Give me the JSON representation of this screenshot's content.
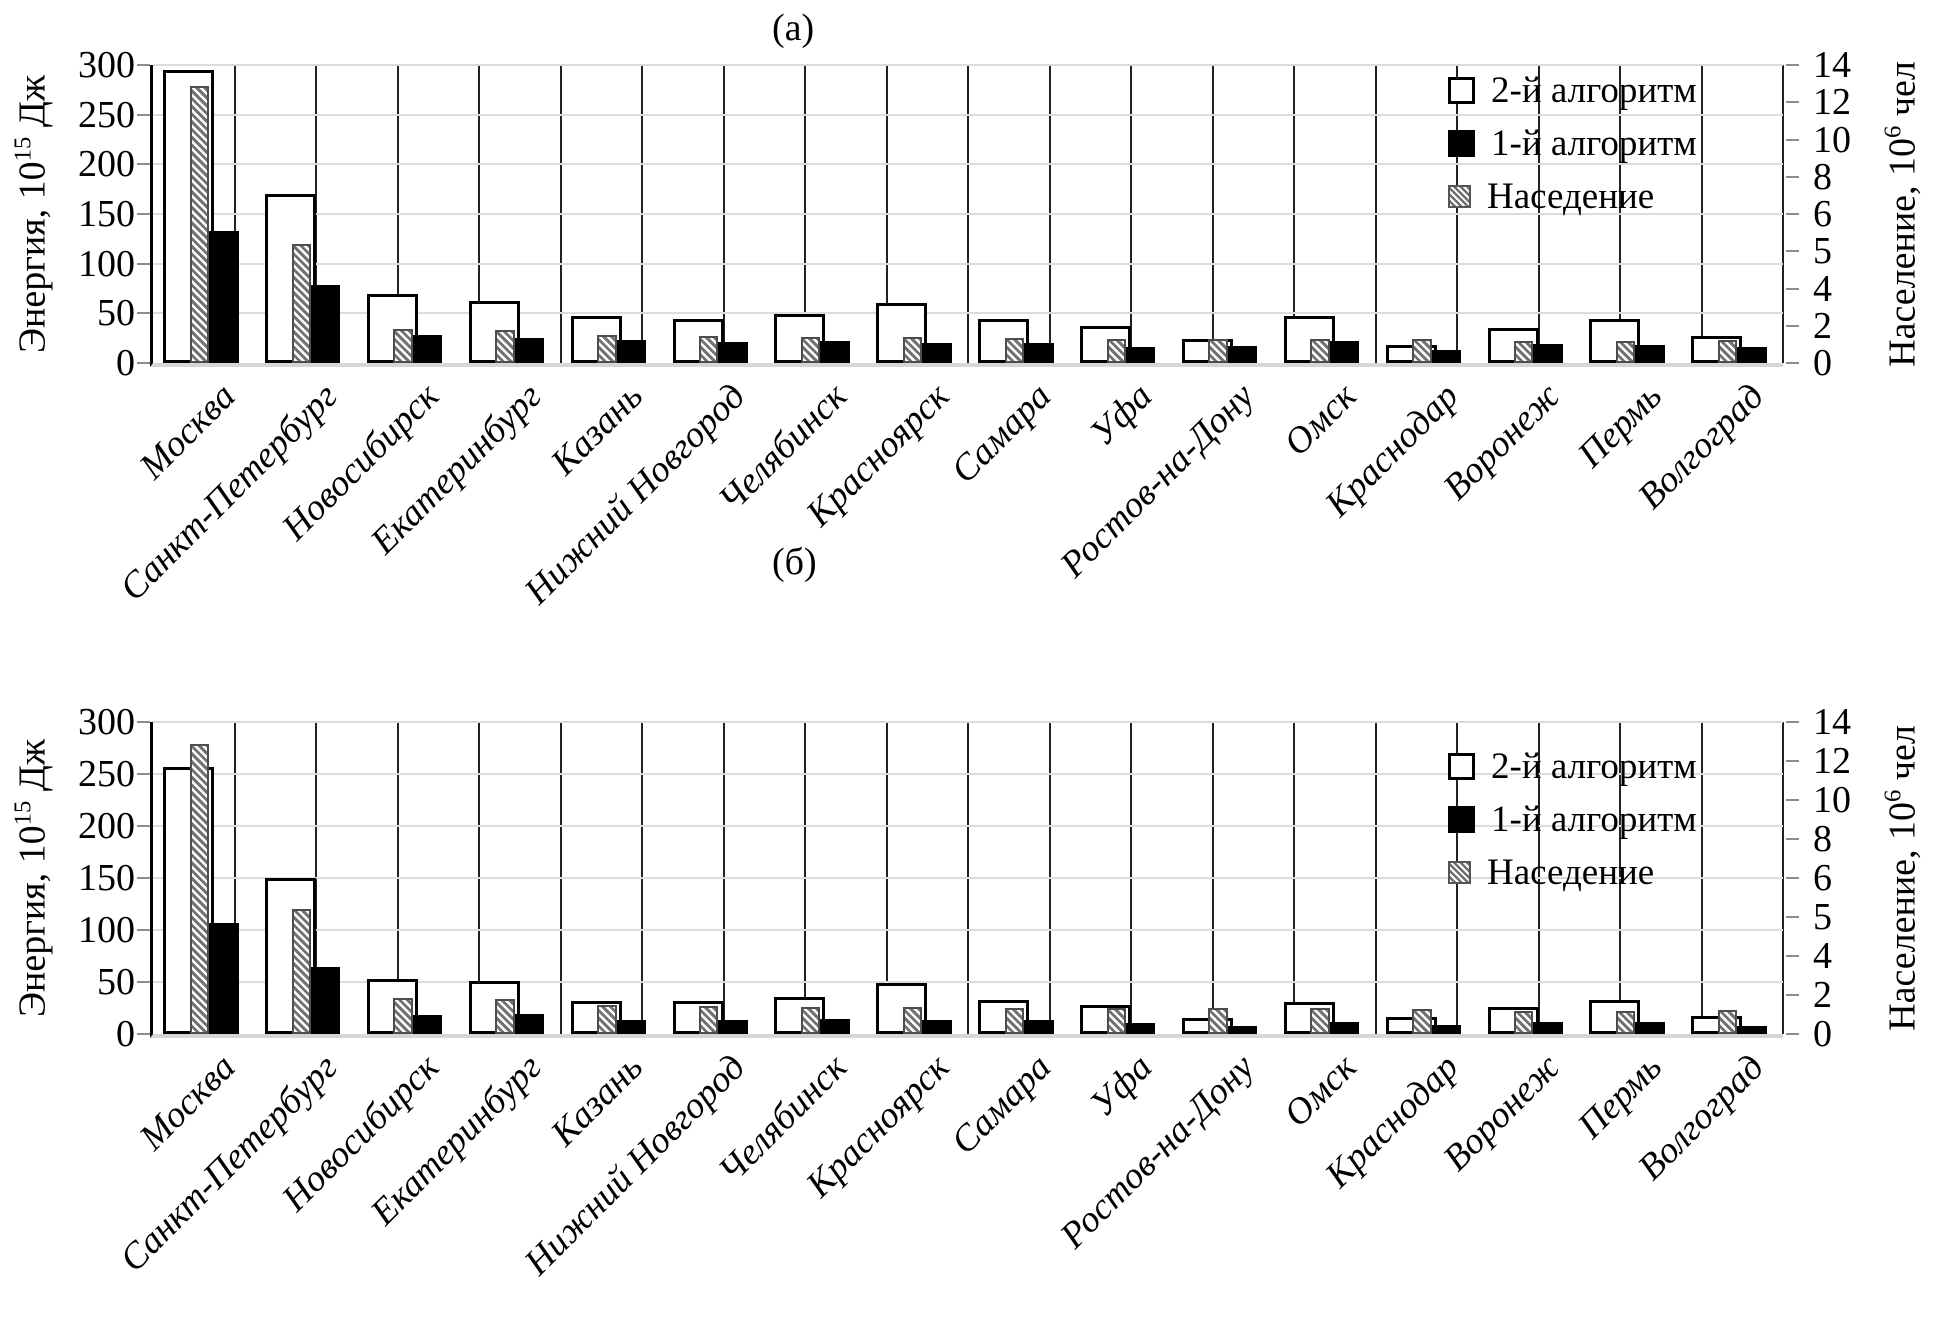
{
  "chart_data": [
    {
      "type": "bar",
      "title": "(а)",
      "categories": [
        "Москва",
        "Санкт-Петербург",
        "Новосибирск",
        "Екатеринбург",
        "Казань",
        "Нижний Новгород",
        "Челябинск",
        "Красноярск",
        "Самара",
        "Уфа",
        "Ростов-на-Дону",
        "Омск",
        "Краснодар",
        "Воронеж",
        "Пермь",
        "Волгоград"
      ],
      "series": [
        {
          "name": "2-й алгоритм",
          "axis": "left",
          "style": "white-outline",
          "values": [
            295,
            170,
            69,
            62,
            47,
            44,
            49,
            60,
            44,
            37,
            24,
            47,
            18,
            35,
            44,
            27
          ]
        },
        {
          "name": "1-й алгоритм",
          "axis": "left",
          "style": "black",
          "values": [
            133,
            79,
            28,
            25,
            23,
            21,
            22,
            20,
            20,
            16,
            17,
            22,
            13,
            19,
            18,
            16
          ]
        },
        {
          "name": "Наседение",
          "axis": "right",
          "style": "hatched",
          "values": [
            13.0,
            5.6,
            1.6,
            1.55,
            1.3,
            1.25,
            1.2,
            1.2,
            1.17,
            1.15,
            1.15,
            1.15,
            1.12,
            1.05,
            1.05,
            1.07
          ]
        }
      ],
      "left_axis": {
        "label": "Энергия, 10^15 Дж",
        "label_base": "Энергия, 10",
        "label_exp": "15",
        "label_unit": " Дж",
        "ticks": [
          0,
          50,
          100,
          150,
          200,
          250,
          300
        ],
        "range": [
          0,
          300
        ]
      },
      "right_axis": {
        "label": "Население, 10^6 чел",
        "label_base": "Население, 10",
        "label_exp": "6",
        "label_unit": " чел",
        "tick_labels_top_to_bottom": [
          "14",
          "12",
          "10",
          "8",
          "6",
          "5",
          "4",
          "2",
          "0"
        ],
        "range": [
          0,
          14
        ]
      },
      "grid": true,
      "legend_position": "top-right-inside"
    },
    {
      "type": "bar",
      "title": "(б)",
      "categories": [
        "Москва",
        "Санкт-Петербург",
        "Новосибирск",
        "Екатеринбург",
        "Казань",
        "Нижний Новгород",
        "Челябинск",
        "Красноярск",
        "Самара",
        "Уфа",
        "Ростов-на-Дону",
        "Омск",
        "Краснодар",
        "Воронеж",
        "Пермь",
        "Волгоград"
      ],
      "series": [
        {
          "name": "2-й алгоритм",
          "axis": "left",
          "style": "white-outline",
          "values": [
            257,
            150,
            53,
            51,
            32,
            32,
            36,
            49,
            33,
            28,
            15,
            31,
            16,
            26,
            33,
            17
          ]
        },
        {
          "name": "1-й алгоритм",
          "axis": "left",
          "style": "black",
          "values": [
            107,
            64,
            18,
            19,
            13,
            13,
            14,
            13,
            13,
            11,
            8,
            12,
            9,
            12,
            12,
            8
          ]
        },
        {
          "name": "Наседение",
          "axis": "right",
          "style": "hatched",
          "values": [
            13.0,
            5.6,
            1.6,
            1.55,
            1.3,
            1.25,
            1.2,
            1.2,
            1.17,
            1.15,
            1.15,
            1.15,
            1.12,
            1.05,
            1.05,
            1.07
          ]
        }
      ],
      "left_axis": {
        "label": "Энергия, 10^15 Дж",
        "label_base": "Энергия, 10",
        "label_exp": "15",
        "label_unit": " Дж",
        "ticks": [
          0,
          50,
          100,
          150,
          200,
          250,
          300
        ],
        "range": [
          0,
          300
        ]
      },
      "right_axis": {
        "label": "Население, 10^6 чел",
        "label_base": "Население, 10",
        "label_exp": "6",
        "label_unit": " чел",
        "tick_labels_top_to_bottom": [
          "14",
          "12",
          "10",
          "8",
          "6",
          "5",
          "4",
          "2",
          "0"
        ],
        "range": [
          0,
          14
        ]
      },
      "grid": true,
      "legend_position": "top-right-inside"
    }
  ]
}
